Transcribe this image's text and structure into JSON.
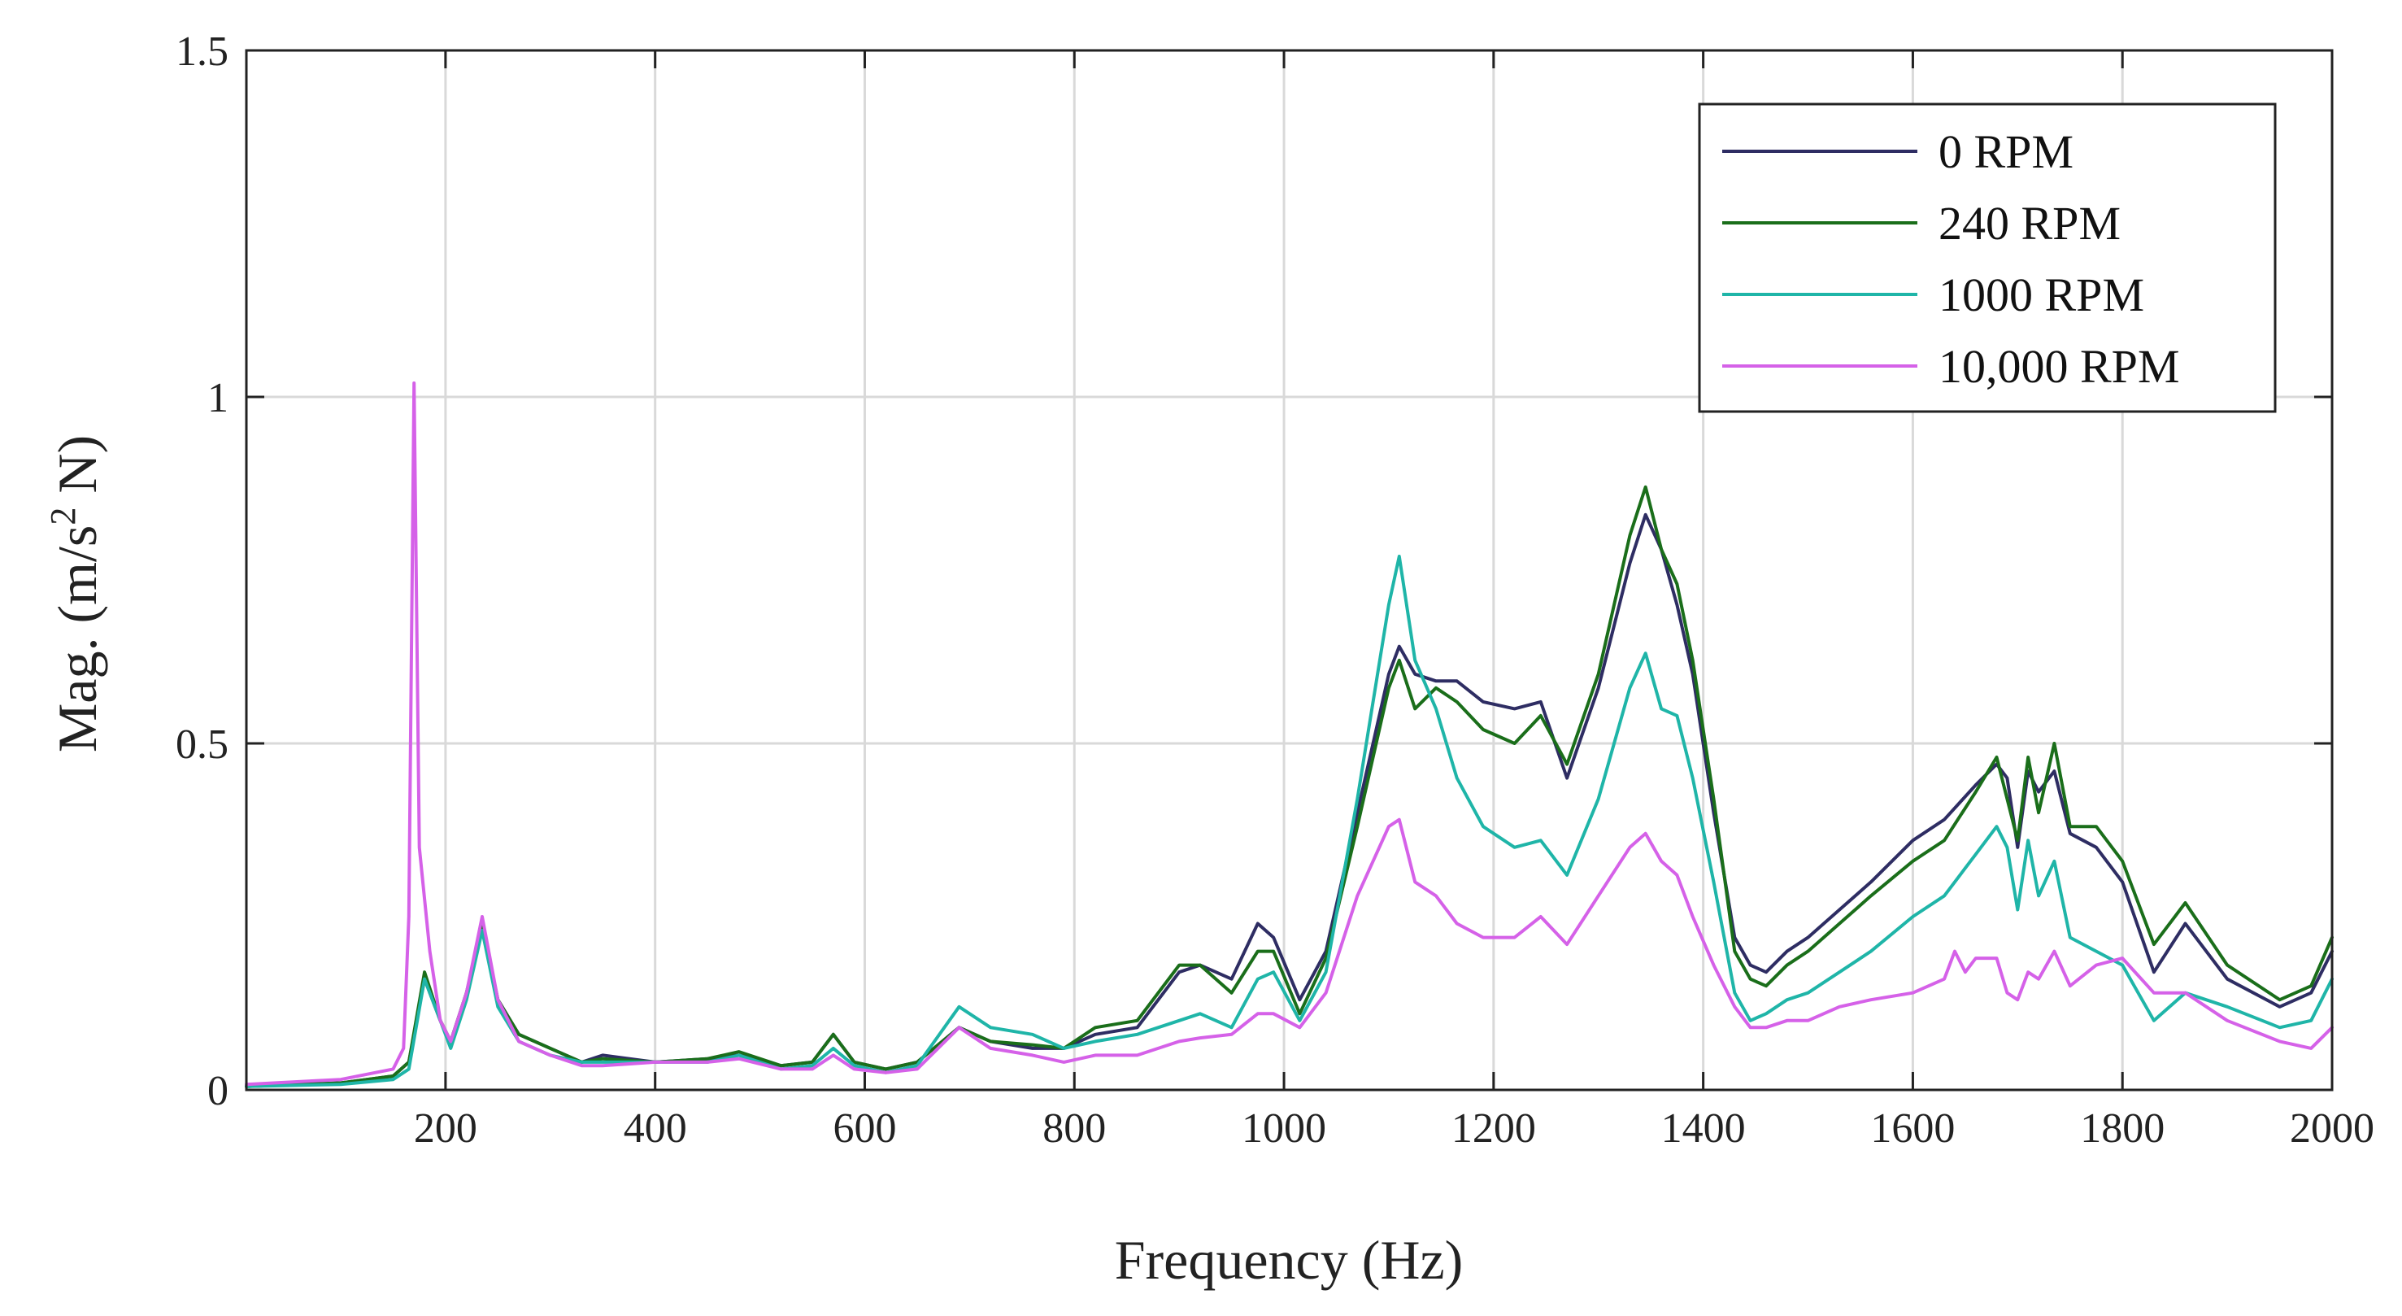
{
  "chart_data": {
    "type": "line",
    "title": "",
    "xlabel": "Frequency (Hz)",
    "ylabel": "Mag. (m/s² N)",
    "ylabel_parts": {
      "pre": "Mag. (m/s",
      "sup": "2",
      "post": " N)"
    },
    "xlim": [
      10,
      2000
    ],
    "ylim": [
      0,
      1.5
    ],
    "xticks": [
      200,
      400,
      600,
      800,
      1000,
      1200,
      1400,
      1600,
      1800,
      2000
    ],
    "xtick_labels": [
      "200",
      "400",
      "600",
      "800",
      "1000",
      "1200",
      "1400",
      "1600",
      "1800",
      "2000"
    ],
    "yticks": [
      0,
      0.5,
      1,
      1.5
    ],
    "ytick_labels": [
      "0",
      "0.5",
      "1",
      "1.5"
    ],
    "grid": true,
    "legend_position": "top-right",
    "series": [
      {
        "name": "0 RPM",
        "color": "#2e2d63",
        "x": [
          10,
          100,
          150,
          165,
          180,
          195,
          205,
          220,
          235,
          250,
          270,
          300,
          330,
          350,
          400,
          450,
          480,
          520,
          550,
          570,
          590,
          620,
          650,
          690,
          720,
          760,
          790,
          820,
          860,
          900,
          920,
          950,
          975,
          990,
          1015,
          1040,
          1070,
          1100,
          1110,
          1125,
          1145,
          1165,
          1190,
          1220,
          1245,
          1270,
          1300,
          1330,
          1345,
          1360,
          1375,
          1390,
          1410,
          1430,
          1445,
          1460,
          1480,
          1500,
          1530,
          1560,
          1600,
          1630,
          1660,
          1680,
          1690,
          1700,
          1710,
          1720,
          1735,
          1750,
          1775,
          1800,
          1830,
          1860,
          1900,
          1950,
          1980,
          2000
        ],
        "y": [
          0.005,
          0.01,
          0.02,
          0.04,
          0.16,
          0.1,
          0.07,
          0.14,
          0.23,
          0.13,
          0.08,
          0.06,
          0.04,
          0.05,
          0.04,
          0.045,
          0.05,
          0.035,
          0.04,
          0.08,
          0.04,
          0.03,
          0.04,
          0.09,
          0.07,
          0.06,
          0.06,
          0.08,
          0.09,
          0.17,
          0.18,
          0.16,
          0.24,
          0.22,
          0.13,
          0.2,
          0.4,
          0.6,
          0.64,
          0.6,
          0.59,
          0.59,
          0.56,
          0.55,
          0.56,
          0.45,
          0.58,
          0.76,
          0.83,
          0.78,
          0.7,
          0.6,
          0.4,
          0.22,
          0.18,
          0.17,
          0.2,
          0.22,
          0.26,
          0.3,
          0.36,
          0.39,
          0.44,
          0.47,
          0.45,
          0.35,
          0.46,
          0.43,
          0.46,
          0.37,
          0.35,
          0.3,
          0.17,
          0.24,
          0.16,
          0.12,
          0.14,
          0.2
        ]
      },
      {
        "name": "240 RPM",
        "color": "#1a6e1a",
        "x": [
          10,
          100,
          150,
          165,
          180,
          195,
          205,
          220,
          235,
          250,
          270,
          300,
          330,
          350,
          400,
          450,
          480,
          520,
          550,
          570,
          590,
          620,
          650,
          690,
          720,
          760,
          790,
          820,
          860,
          900,
          920,
          950,
          975,
          990,
          1015,
          1040,
          1070,
          1100,
          1110,
          1125,
          1145,
          1165,
          1190,
          1220,
          1245,
          1270,
          1300,
          1330,
          1345,
          1360,
          1375,
          1390,
          1410,
          1430,
          1445,
          1460,
          1480,
          1500,
          1530,
          1560,
          1600,
          1630,
          1660,
          1680,
          1690,
          1700,
          1710,
          1720,
          1735,
          1750,
          1775,
          1800,
          1830,
          1860,
          1900,
          1950,
          1980,
          2000
        ],
        "y": [
          0.005,
          0.01,
          0.02,
          0.04,
          0.17,
          0.1,
          0.07,
          0.14,
          0.24,
          0.13,
          0.08,
          0.06,
          0.04,
          0.045,
          0.04,
          0.045,
          0.055,
          0.035,
          0.04,
          0.08,
          0.04,
          0.03,
          0.04,
          0.09,
          0.07,
          0.065,
          0.06,
          0.09,
          0.1,
          0.18,
          0.18,
          0.14,
          0.2,
          0.2,
          0.11,
          0.19,
          0.38,
          0.58,
          0.62,
          0.55,
          0.58,
          0.56,
          0.52,
          0.5,
          0.54,
          0.47,
          0.6,
          0.8,
          0.87,
          0.78,
          0.73,
          0.62,
          0.42,
          0.2,
          0.16,
          0.15,
          0.18,
          0.2,
          0.24,
          0.28,
          0.33,
          0.36,
          0.43,
          0.48,
          0.42,
          0.36,
          0.48,
          0.4,
          0.5,
          0.38,
          0.38,
          0.33,
          0.21,
          0.27,
          0.18,
          0.13,
          0.15,
          0.22
        ]
      },
      {
        "name": "1000 RPM",
        "color": "#1fb5a8",
        "x": [
          10,
          100,
          150,
          165,
          180,
          195,
          205,
          220,
          235,
          250,
          270,
          300,
          330,
          350,
          400,
          450,
          480,
          520,
          550,
          570,
          590,
          620,
          650,
          690,
          720,
          760,
          790,
          820,
          860,
          900,
          920,
          950,
          975,
          990,
          1015,
          1040,
          1070,
          1100,
          1110,
          1125,
          1145,
          1165,
          1190,
          1220,
          1245,
          1270,
          1300,
          1330,
          1345,
          1360,
          1375,
          1390,
          1410,
          1430,
          1445,
          1460,
          1480,
          1500,
          1530,
          1560,
          1600,
          1630,
          1660,
          1680,
          1690,
          1700,
          1710,
          1720,
          1735,
          1750,
          1775,
          1800,
          1830,
          1860,
          1900,
          1950,
          1980,
          2000
        ],
        "y": [
          0.005,
          0.008,
          0.015,
          0.03,
          0.16,
          0.1,
          0.06,
          0.13,
          0.23,
          0.12,
          0.07,
          0.05,
          0.04,
          0.04,
          0.04,
          0.04,
          0.05,
          0.03,
          0.035,
          0.06,
          0.035,
          0.025,
          0.035,
          0.12,
          0.09,
          0.08,
          0.06,
          0.07,
          0.08,
          0.1,
          0.11,
          0.09,
          0.16,
          0.17,
          0.1,
          0.17,
          0.42,
          0.7,
          0.77,
          0.62,
          0.55,
          0.45,
          0.38,
          0.35,
          0.36,
          0.31,
          0.42,
          0.58,
          0.63,
          0.55,
          0.54,
          0.45,
          0.3,
          0.14,
          0.1,
          0.11,
          0.13,
          0.14,
          0.17,
          0.2,
          0.25,
          0.28,
          0.34,
          0.38,
          0.35,
          0.26,
          0.36,
          0.28,
          0.33,
          0.22,
          0.2,
          0.18,
          0.1,
          0.14,
          0.12,
          0.09,
          0.1,
          0.16
        ]
      },
      {
        "name": "10,000 RPM",
        "color": "#d561e8",
        "x": [
          10,
          100,
          150,
          160,
          165,
          170,
          175,
          185,
          195,
          205,
          220,
          235,
          250,
          270,
          300,
          330,
          350,
          400,
          450,
          480,
          520,
          550,
          570,
          590,
          620,
          650,
          690,
          720,
          760,
          790,
          820,
          860,
          900,
          920,
          950,
          975,
          990,
          1015,
          1040,
          1070,
          1100,
          1110,
          1125,
          1145,
          1165,
          1190,
          1220,
          1245,
          1270,
          1300,
          1330,
          1345,
          1360,
          1375,
          1390,
          1410,
          1430,
          1445,
          1460,
          1480,
          1500,
          1530,
          1560,
          1600,
          1630,
          1640,
          1650,
          1660,
          1680,
          1690,
          1700,
          1710,
          1720,
          1735,
          1750,
          1775,
          1800,
          1830,
          1860,
          1900,
          1950,
          1980,
          2000
        ],
        "y": [
          0.008,
          0.015,
          0.03,
          0.06,
          0.25,
          1.02,
          0.35,
          0.2,
          0.1,
          0.07,
          0.14,
          0.25,
          0.13,
          0.07,
          0.05,
          0.035,
          0.035,
          0.04,
          0.04,
          0.045,
          0.03,
          0.03,
          0.05,
          0.03,
          0.025,
          0.03,
          0.09,
          0.06,
          0.05,
          0.04,
          0.05,
          0.05,
          0.07,
          0.075,
          0.08,
          0.11,
          0.11,
          0.09,
          0.14,
          0.28,
          0.38,
          0.39,
          0.3,
          0.28,
          0.24,
          0.22,
          0.22,
          0.25,
          0.21,
          0.28,
          0.35,
          0.37,
          0.33,
          0.31,
          0.25,
          0.18,
          0.12,
          0.09,
          0.09,
          0.1,
          0.1,
          0.12,
          0.13,
          0.14,
          0.16,
          0.2,
          0.17,
          0.19,
          0.19,
          0.14,
          0.13,
          0.17,
          0.16,
          0.2,
          0.15,
          0.18,
          0.19,
          0.14,
          0.14,
          0.1,
          0.07,
          0.06,
          0.09
        ]
      }
    ]
  }
}
